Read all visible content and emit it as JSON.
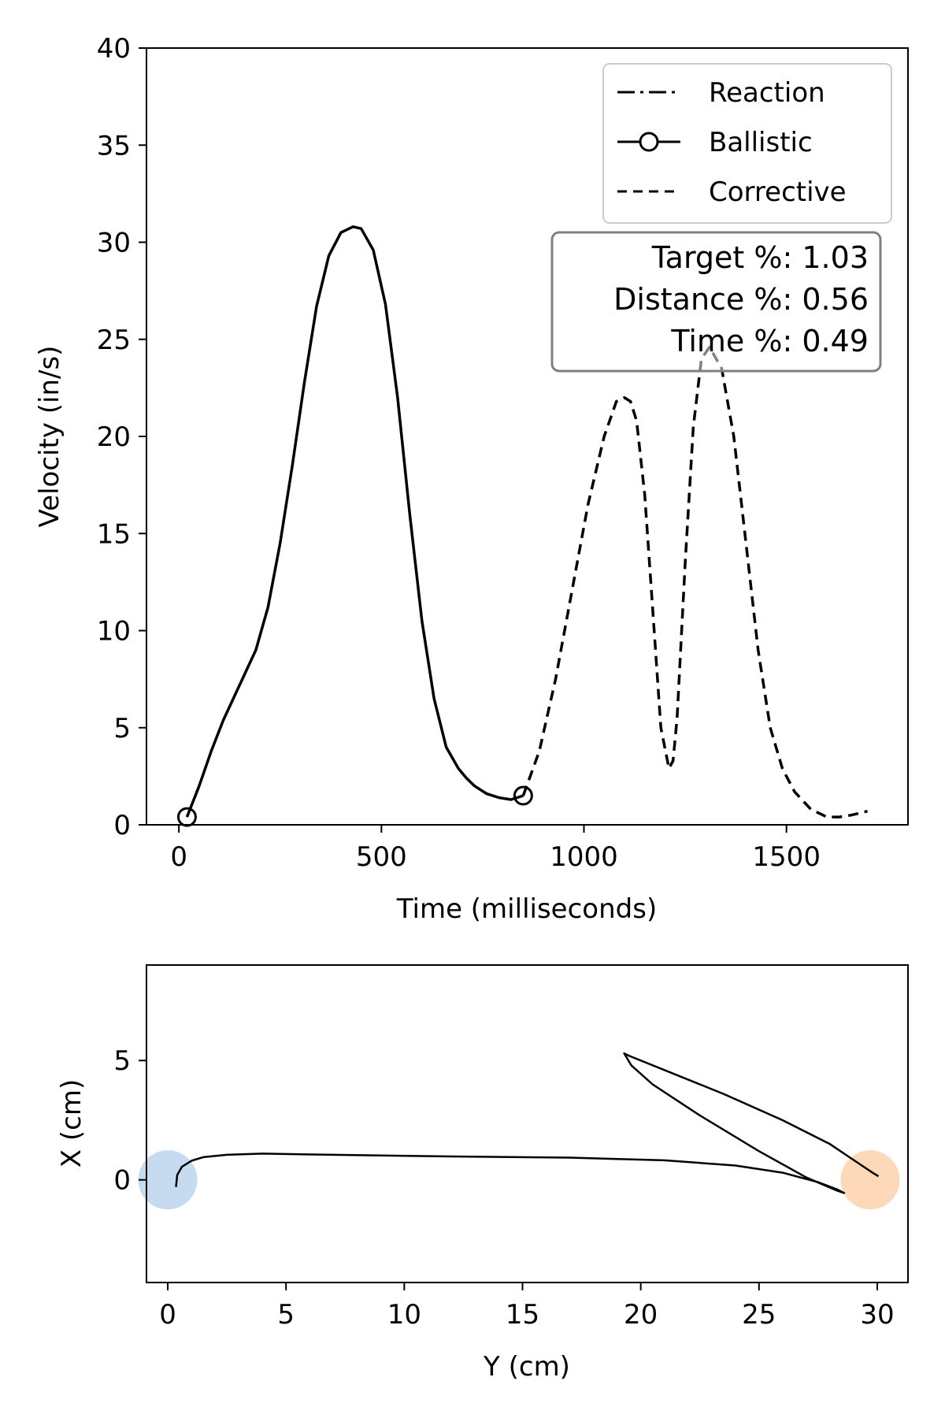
{
  "chart_data": [
    {
      "type": "line",
      "xlabel": "Time (milliseconds)",
      "ylabel": "Velocity (in/s)",
      "xlim": [
        -80,
        1800
      ],
      "ylim": [
        0,
        40
      ],
      "x_ticks": [
        0,
        500,
        1000,
        1500
      ],
      "y_ticks": [
        0,
        5,
        10,
        15,
        20,
        25,
        30,
        35,
        40
      ],
      "grid": false,
      "legend": {
        "placement": "top-right",
        "entries": [
          {
            "name": "Reaction",
            "style": "dash-dot"
          },
          {
            "name": "Ballistic",
            "style": "solid-circle-marker"
          },
          {
            "name": "Corrective",
            "style": "dashed"
          }
        ]
      },
      "annotation": {
        "lines": [
          "Target %: 1.03",
          "Distance %: 0.56",
          "Time %: 0.49"
        ]
      },
      "series": [
        {
          "name": "Ballistic",
          "style": "solid",
          "x": [
            20,
            50,
            80,
            110,
            150,
            190,
            220,
            250,
            280,
            310,
            340,
            370,
            400,
            430,
            450,
            480,
            510,
            540,
            570,
            600,
            630,
            660,
            690,
            710,
            730,
            760,
            790,
            820,
            850
          ],
          "y": [
            0.4,
            2.0,
            3.8,
            5.4,
            7.2,
            9.0,
            11.2,
            14.5,
            18.5,
            22.8,
            26.7,
            29.3,
            30.5,
            30.8,
            30.7,
            29.6,
            26.8,
            22.0,
            16.0,
            10.5,
            6.5,
            4.0,
            2.9,
            2.4,
            2.0,
            1.6,
            1.4,
            1.3,
            1.5
          ]
        },
        {
          "name": "Ballistic-markers",
          "style": "circle",
          "x": [
            20,
            850
          ],
          "y": [
            0.4,
            1.5
          ]
        },
        {
          "name": "Corrective",
          "style": "dashed",
          "x": [
            850,
            890,
            930,
            970,
            1010,
            1050,
            1080,
            1100,
            1115,
            1130,
            1150,
            1170,
            1190,
            1210,
            1220,
            1230,
            1250,
            1270,
            1290,
            1310,
            1340,
            1370,
            1400,
            1430,
            1460,
            1490,
            1520,
            1560,
            1600,
            1630,
            1660,
            1700
          ],
          "y": [
            1.5,
            3.8,
            7.5,
            12.0,
            16.5,
            20.0,
            21.8,
            22.0,
            21.8,
            20.8,
            17.0,
            11.0,
            5.0,
            2.9,
            3.3,
            5.5,
            13.5,
            20.5,
            24.0,
            24.6,
            23.5,
            20.0,
            14.5,
            9.0,
            5.0,
            2.9,
            1.7,
            0.8,
            0.4,
            0.4,
            0.5,
            0.7
          ]
        }
      ]
    },
    {
      "type": "line",
      "xlabel": "Y (cm)",
      "ylabel": "X (cm)",
      "xlim": [
        -0.9,
        31.3
      ],
      "ylim": [
        -4.3,
        9.0
      ],
      "x_ticks": [
        0,
        5,
        10,
        15,
        20,
        25,
        30
      ],
      "y_ticks": [
        0,
        5
      ],
      "grid": false,
      "start_circle": {
        "center": [
          0,
          0
        ],
        "color": "#c6dbef"
      },
      "target_circle": {
        "center": [
          29.7,
          0
        ],
        "color": "#fdd9b9"
      },
      "series": [
        {
          "name": "path",
          "style": "solid",
          "x": [
            0.35,
            0.4,
            0.6,
            1.0,
            1.5,
            2.5,
            4.0,
            7.0,
            12.0,
            17.0,
            21.0,
            24.0,
            26.0,
            27.5,
            28.3,
            28.6,
            28.3,
            27.0,
            25.0,
            22.5,
            20.5,
            19.6,
            19.3,
            19.5,
            21.0,
            23.5,
            26.0,
            28.0,
            29.2,
            29.8,
            30.05
          ],
          "y": [
            -0.3,
            0.2,
            0.55,
            0.8,
            0.95,
            1.05,
            1.1,
            1.05,
            0.98,
            0.93,
            0.82,
            0.6,
            0.3,
            -0.1,
            -0.4,
            -0.55,
            -0.45,
            0.1,
            1.2,
            2.7,
            4.0,
            4.8,
            5.3,
            5.2,
            4.6,
            3.6,
            2.5,
            1.5,
            0.7,
            0.3,
            0.15
          ]
        }
      ]
    }
  ]
}
